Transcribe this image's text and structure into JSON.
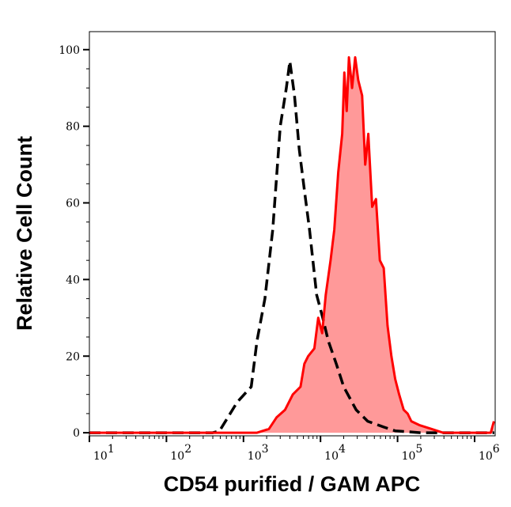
{
  "chart_data": {
    "type": "area",
    "xlabel": "CD54 purified / GAM APC",
    "ylabel": "Relative Cell Count",
    "xscale": "log",
    "xlim": [
      10,
      1850000
    ],
    "ylim": [
      -0.8,
      104.7
    ],
    "xticks": [
      {
        "base": "10",
        "exp": "1",
        "value": 10
      },
      {
        "base": "10",
        "exp": "2",
        "value": 100
      },
      {
        "base": "10",
        "exp": "3",
        "value": 1000
      },
      {
        "base": "10",
        "exp": "4",
        "value": 10000
      },
      {
        "base": "10",
        "exp": "5",
        "value": 100000
      },
      {
        "base": "10",
        "exp": "6",
        "value": 1000000
      }
    ],
    "yticks": [
      0,
      20,
      40,
      60,
      80,
      100
    ],
    "grid": false,
    "series": [
      {
        "style": "dashed",
        "color": "#000000",
        "filled": false,
        "x": [
          10,
          400,
          490,
          830,
          1260,
          1500,
          1900,
          2400,
          3000,
          3600,
          4000,
          4600,
          5300,
          6200,
          7200,
          8900,
          10700,
          12600,
          16000,
          20000,
          29000,
          41000,
          66000,
          93000,
          200000,
          1800000
        ],
        "y": [
          0,
          0,
          0.5,
          8,
          12,
          24,
          35,
          53,
          80,
          90,
          97,
          88,
          74,
          63,
          53,
          36,
          30,
          24,
          18,
          12,
          6,
          3,
          1.5,
          0.5,
          0,
          0
        ]
      },
      {
        "style": "solid",
        "color": "#ff0000",
        "fill": "#ff9999",
        "filled": true,
        "x": [
          10,
          1500,
          2140,
          2690,
          3470,
          4370,
          5500,
          6170,
          6920,
          8320,
          9330,
          10500,
          11700,
          13500,
          15100,
          17000,
          19100,
          20400,
          21900,
          23400,
          25700,
          28200,
          30900,
          34700,
          38000,
          41700,
          46800,
          52500,
          58900,
          66100,
          74100,
          83200,
          93300,
          105000,
          120000,
          135000,
          151000,
          191000,
          275000,
          389000,
          1000000,
          1620000,
          1780000
        ],
        "y": [
          0,
          0,
          1,
          4,
          6,
          10,
          12,
          18,
          20,
          22,
          30,
          26,
          36,
          45,
          53,
          68,
          78,
          94,
          84,
          98,
          90,
          98,
          92,
          88,
          70,
          78,
          59,
          61,
          45,
          43,
          28,
          20,
          14,
          10,
          6,
          5,
          3,
          2,
          1,
          0,
          0,
          0,
          3
        ]
      }
    ]
  }
}
